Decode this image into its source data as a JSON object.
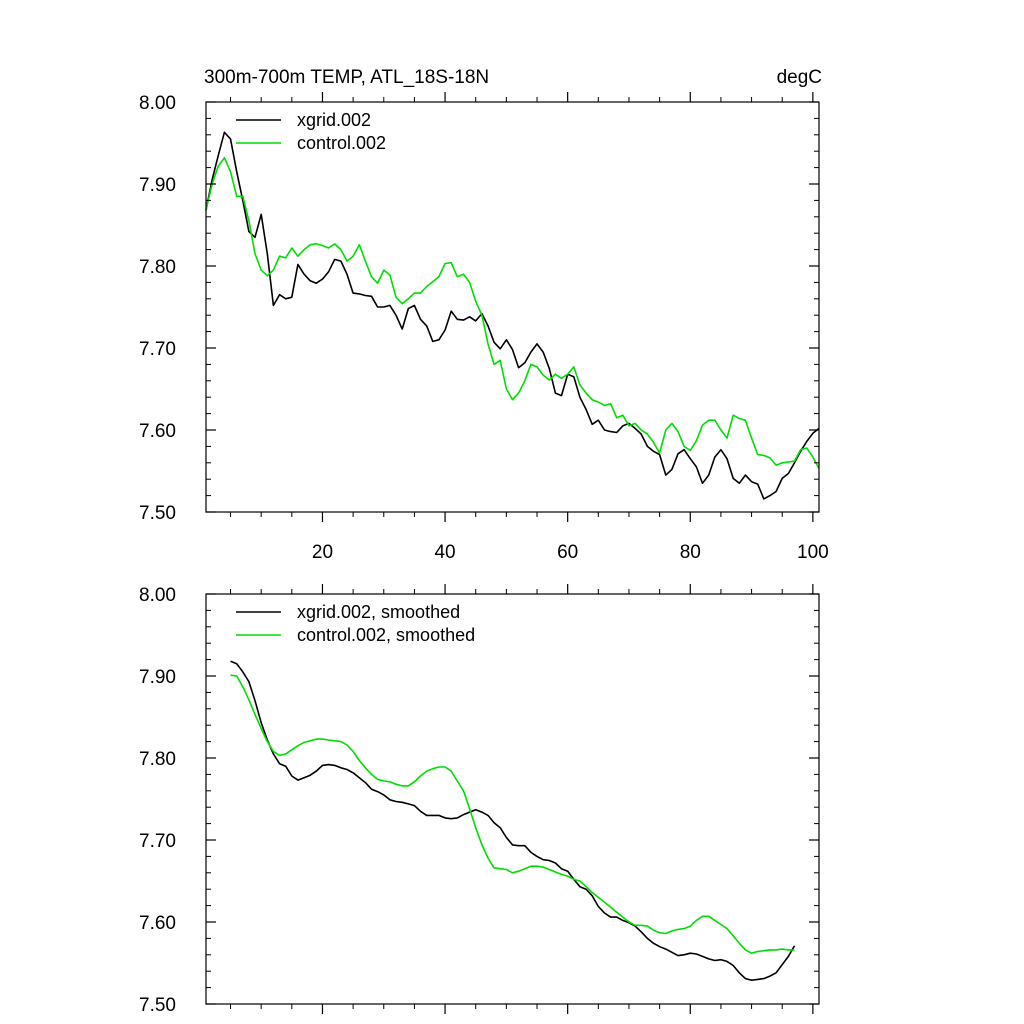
{
  "chart_data": [
    {
      "type": "line",
      "title": "300m-700m TEMP, ATL_18S-18N",
      "units": "degC",
      "xlim": [
        1,
        101
      ],
      "ylim": [
        7.5,
        8.0
      ],
      "x_ticks": [
        20,
        40,
        60,
        80,
        100
      ],
      "x_tick_labels": [
        "20",
        "40",
        "60",
        "80",
        "100"
      ],
      "y_ticks": [
        7.5,
        7.6,
        7.7,
        7.8,
        7.9,
        8.0
      ],
      "y_tick_labels": [
        "7.50",
        "7.60",
        "7.70",
        "7.80",
        "7.90",
        "8.00"
      ],
      "legend_position": "top-left",
      "grid": false,
      "series": [
        {
          "name": "xgrid.002",
          "color": "#000000",
          "x": [
            1,
            2,
            3,
            4,
            5,
            6,
            7,
            8,
            9,
            10,
            11,
            12,
            13,
            14,
            15,
            16,
            17,
            18,
            19,
            20,
            21,
            22,
            23,
            24,
            25,
            26,
            27,
            28,
            29,
            30,
            31,
            32,
            33,
            34,
            35,
            36,
            37,
            38,
            39,
            40,
            41,
            42,
            43,
            44,
            45,
            46,
            47,
            48,
            49,
            50,
            51,
            52,
            53,
            54,
            55,
            56,
            57,
            58,
            59,
            60,
            61,
            62,
            63,
            64,
            65,
            66,
            67,
            68,
            69,
            70,
            71,
            72,
            73,
            74,
            75,
            76,
            77,
            78,
            79,
            80,
            81,
            82,
            83,
            84,
            85,
            86,
            87,
            88,
            89,
            90,
            91,
            92,
            93,
            94,
            95,
            96,
            97,
            98,
            99,
            100,
            101
          ],
          "values": [
            7.868,
            7.905,
            7.935,
            7.963,
            7.955,
            7.915,
            7.88,
            7.842,
            7.835,
            7.863,
            7.815,
            7.752,
            7.765,
            7.76,
            7.762,
            7.802,
            7.79,
            7.782,
            7.779,
            7.784,
            7.793,
            7.808,
            7.806,
            7.79,
            7.767,
            7.766,
            7.764,
            7.763,
            7.75,
            7.75,
            7.752,
            7.74,
            7.723,
            7.748,
            7.752,
            7.735,
            7.727,
            7.708,
            7.71,
            7.722,
            7.745,
            7.735,
            7.734,
            7.738,
            7.733,
            7.742,
            7.727,
            7.707,
            7.699,
            7.71,
            7.698,
            7.676,
            7.682,
            7.695,
            7.705,
            7.695,
            7.675,
            7.645,
            7.642,
            7.668,
            7.665,
            7.64,
            7.625,
            7.607,
            7.612,
            7.6,
            7.598,
            7.597,
            7.605,
            7.608,
            7.602,
            7.595,
            7.58,
            7.574,
            7.57,
            7.545,
            7.552,
            7.571,
            7.576,
            7.565,
            7.555,
            7.535,
            7.545,
            7.567,
            7.576,
            7.565,
            7.541,
            7.535,
            7.545,
            7.537,
            7.534,
            7.516,
            7.52,
            7.525,
            7.541,
            7.547,
            7.56,
            7.574,
            7.586,
            7.596,
            7.602
          ]
        },
        {
          "name": "control.002",
          "color": "#00dd00",
          "x": [
            1,
            2,
            3,
            4,
            5,
            6,
            7,
            8,
            9,
            10,
            11,
            12,
            13,
            14,
            15,
            16,
            17,
            18,
            19,
            20,
            21,
            22,
            23,
            24,
            25,
            26,
            27,
            28,
            29,
            30,
            31,
            32,
            33,
            34,
            35,
            36,
            37,
            38,
            39,
            40,
            41,
            42,
            43,
            44,
            45,
            46,
            47,
            48,
            49,
            50,
            51,
            52,
            53,
            54,
            55,
            56,
            57,
            58,
            59,
            60,
            61,
            62,
            63,
            64,
            65,
            66,
            67,
            68,
            69,
            70,
            71,
            72,
            73,
            74,
            75,
            76,
            77,
            78,
            79,
            80,
            81,
            82,
            83,
            84,
            85,
            86,
            87,
            88,
            89,
            90,
            91,
            92,
            93,
            94,
            95,
            96,
            97,
            98,
            99,
            100,
            101
          ],
          "values": [
            7.868,
            7.9,
            7.922,
            7.932,
            7.915,
            7.885,
            7.885,
            7.855,
            7.815,
            7.795,
            7.788,
            7.795,
            7.812,
            7.81,
            7.822,
            7.812,
            7.82,
            7.826,
            7.827,
            7.825,
            7.822,
            7.827,
            7.82,
            7.806,
            7.812,
            7.826,
            7.806,
            7.787,
            7.779,
            7.795,
            7.789,
            7.762,
            7.754,
            7.76,
            7.767,
            7.767,
            7.775,
            7.781,
            7.787,
            7.803,
            7.804,
            7.787,
            7.79,
            7.78,
            7.757,
            7.74,
            7.705,
            7.68,
            7.685,
            7.65,
            7.637,
            7.645,
            7.66,
            7.68,
            7.677,
            7.667,
            7.661,
            7.668,
            7.663,
            7.668,
            7.677,
            7.655,
            7.645,
            7.637,
            7.634,
            7.63,
            7.632,
            7.615,
            7.618,
            7.605,
            7.608,
            7.6,
            7.595,
            7.585,
            7.572,
            7.6,
            7.608,
            7.598,
            7.58,
            7.575,
            7.587,
            7.606,
            7.612,
            7.612,
            7.6,
            7.59,
            7.618,
            7.614,
            7.612,
            7.59,
            7.57,
            7.569,
            7.566,
            7.557,
            7.56,
            7.561,
            7.562,
            7.576,
            7.578,
            7.567,
            7.553
          ]
        }
      ]
    },
    {
      "type": "line",
      "title": "",
      "units": "",
      "xlim": [
        1,
        101
      ],
      "ylim": [
        7.5,
        8.0
      ],
      "x_ticks": [
        20,
        40,
        60,
        80,
        100
      ],
      "x_tick_labels": [],
      "y_ticks": [
        7.5,
        7.6,
        7.7,
        7.8,
        7.9,
        8.0
      ],
      "y_tick_labels": [
        "7.50",
        "7.60",
        "7.70",
        "7.80",
        "7.90",
        "8.00"
      ],
      "legend_position": "top-left",
      "grid": false,
      "series": [
        {
          "name": "xgrid.002, smoothed",
          "color": "#000000",
          "x": [
            5,
            6,
            7,
            8,
            9,
            10,
            11,
            12,
            13,
            14,
            15,
            16,
            17,
            18,
            19,
            20,
            21,
            22,
            23,
            24,
            25,
            26,
            27,
            28,
            29,
            30,
            31,
            32,
            33,
            34,
            35,
            36,
            37,
            38,
            39,
            40,
            41,
            42,
            43,
            44,
            45,
            46,
            47,
            48,
            49,
            50,
            51,
            52,
            53,
            54,
            55,
            56,
            57,
            58,
            59,
            60,
            61,
            62,
            63,
            64,
            65,
            66,
            67,
            68,
            69,
            70,
            71,
            72,
            73,
            74,
            75,
            76,
            77,
            78,
            79,
            80,
            81,
            82,
            83,
            84,
            85,
            86,
            87,
            88,
            89,
            90,
            91,
            92,
            93,
            94,
            95,
            96,
            97
          ],
          "values": [
            7.918,
            7.915,
            7.905,
            7.893,
            7.87,
            7.843,
            7.822,
            7.805,
            7.793,
            7.79,
            7.778,
            7.773,
            7.776,
            7.779,
            7.784,
            7.791,
            7.792,
            7.791,
            7.788,
            7.786,
            7.782,
            7.776,
            7.77,
            7.762,
            7.759,
            7.755,
            7.749,
            7.747,
            7.746,
            7.744,
            7.742,
            7.735,
            7.73,
            7.73,
            7.73,
            7.727,
            7.726,
            7.727,
            7.731,
            7.734,
            7.737,
            7.734,
            7.73,
            7.721,
            7.715,
            7.703,
            7.694,
            7.693,
            7.693,
            7.685,
            7.68,
            7.676,
            7.675,
            7.672,
            7.665,
            7.662,
            7.652,
            7.643,
            7.64,
            7.632,
            7.619,
            7.611,
            7.606,
            7.606,
            7.602,
            7.599,
            7.595,
            7.588,
            7.58,
            7.574,
            7.57,
            7.567,
            7.563,
            7.559,
            7.56,
            7.562,
            7.561,
            7.558,
            7.555,
            7.553,
            7.554,
            7.552,
            7.547,
            7.538,
            7.531,
            7.529,
            7.53,
            7.531,
            7.534,
            7.538,
            7.548,
            7.558,
            7.571
          ]
        },
        {
          "name": "control.002, smoothed",
          "color": "#00dd00",
          "x": [
            5,
            6,
            7,
            8,
            9,
            10,
            11,
            12,
            13,
            14,
            15,
            16,
            17,
            18,
            19,
            20,
            21,
            22,
            23,
            24,
            25,
            26,
            27,
            28,
            29,
            30,
            31,
            32,
            33,
            34,
            35,
            36,
            37,
            38,
            39,
            40,
            41,
            42,
            43,
            44,
            45,
            46,
            47,
            48,
            49,
            50,
            51,
            52,
            53,
            54,
            55,
            56,
            57,
            58,
            59,
            60,
            61,
            62,
            63,
            64,
            65,
            66,
            67,
            68,
            69,
            70,
            71,
            72,
            73,
            74,
            75,
            76,
            77,
            78,
            79,
            80,
            81,
            82,
            83,
            84,
            85,
            86,
            87,
            88,
            89,
            90,
            91,
            92,
            93,
            94,
            95,
            96,
            97
          ],
          "values": [
            7.901,
            7.9,
            7.887,
            7.871,
            7.853,
            7.836,
            7.82,
            7.808,
            7.803,
            7.805,
            7.81,
            7.815,
            7.819,
            7.821,
            7.823,
            7.823,
            7.822,
            7.821,
            7.82,
            7.816,
            7.808,
            7.797,
            7.788,
            7.78,
            7.774,
            7.772,
            7.771,
            7.768,
            7.766,
            7.766,
            7.771,
            7.778,
            7.784,
            7.787,
            7.789,
            7.789,
            7.784,
            7.772,
            7.76,
            7.738,
            7.715,
            7.694,
            7.678,
            7.666,
            7.665,
            7.664,
            7.66,
            7.662,
            7.665,
            7.668,
            7.668,
            7.667,
            7.664,
            7.661,
            7.658,
            7.656,
            7.652,
            7.65,
            7.643,
            7.636,
            7.63,
            7.624,
            7.618,
            7.612,
            7.606,
            7.6,
            7.596,
            7.596,
            7.595,
            7.59,
            7.587,
            7.586,
            7.589,
            7.591,
            7.592,
            7.595,
            7.602,
            7.607,
            7.607,
            7.602,
            7.597,
            7.592,
            7.583,
            7.574,
            7.566,
            7.562,
            7.564,
            7.565,
            7.566,
            7.566,
            7.567,
            7.566,
            7.566
          ]
        }
      ]
    }
  ]
}
